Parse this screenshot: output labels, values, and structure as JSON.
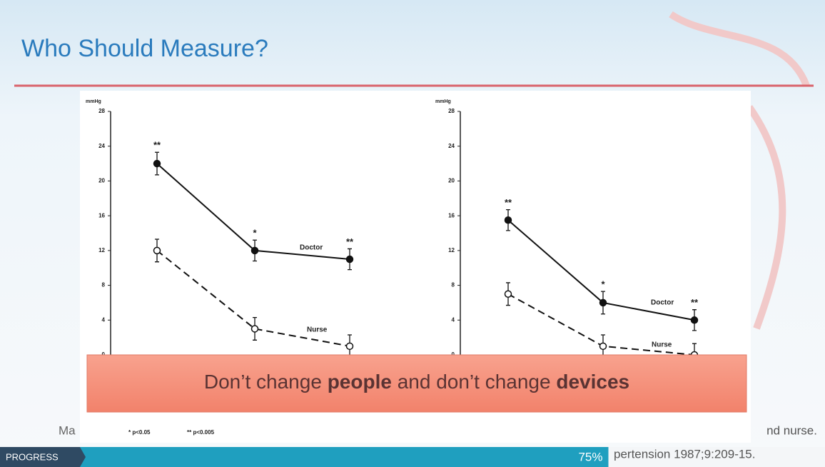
{
  "slide": {
    "title": "Who Should Measure?",
    "callout": [
      "Don’t change ",
      "people",
      " and don’t change ",
      "devices"
    ],
    "footnotes": {
      "left": "Ma",
      "sig1": "* p<0.05",
      "sig2": "** p<0.005",
      "right1": "nd nurse.",
      "right2": "pertension 1987;9:209-15."
    },
    "progress": {
      "label": "PROGRESS",
      "value": 75,
      "value_label": "75%"
    }
  },
  "chart_data": [
    {
      "type": "line",
      "ylabel": "mmHg",
      "categories": [
        null,
        null,
        null
      ],
      "ylim": [
        0,
        28
      ],
      "yticks": [
        0,
        4,
        8,
        12,
        16,
        20,
        24,
        28
      ],
      "series": [
        {
          "name": "Doctor",
          "color": "#111111",
          "dash": false,
          "values": [
            22,
            12,
            11
          ],
          "errors": [
            1.3,
            1.2,
            1.2
          ],
          "annotations": [
            "**",
            "*",
            "**"
          ]
        },
        {
          "name": "Nurse",
          "color": "#111111",
          "dash": true,
          "values": [
            12,
            3,
            1
          ],
          "errors": [
            1.3,
            1.3,
            1.3
          ]
        }
      ]
    },
    {
      "type": "line",
      "ylabel": "mmHg",
      "categories": [
        null,
        null,
        null
      ],
      "ylim": [
        0,
        28
      ],
      "yticks": [
        0,
        4,
        8,
        12,
        16,
        20,
        24,
        28
      ],
      "series": [
        {
          "name": "Doctor",
          "color": "#111111",
          "dash": false,
          "values": [
            15.5,
            6,
            4
          ],
          "errors": [
            1.2,
            1.3,
            1.2
          ],
          "annotations": [
            "**",
            "*",
            "**"
          ]
        },
        {
          "name": "Nurse",
          "color": "#111111",
          "dash": true,
          "values": [
            7,
            1,
            0
          ],
          "errors": [
            1.3,
            1.3,
            1.3
          ]
        }
      ]
    }
  ]
}
